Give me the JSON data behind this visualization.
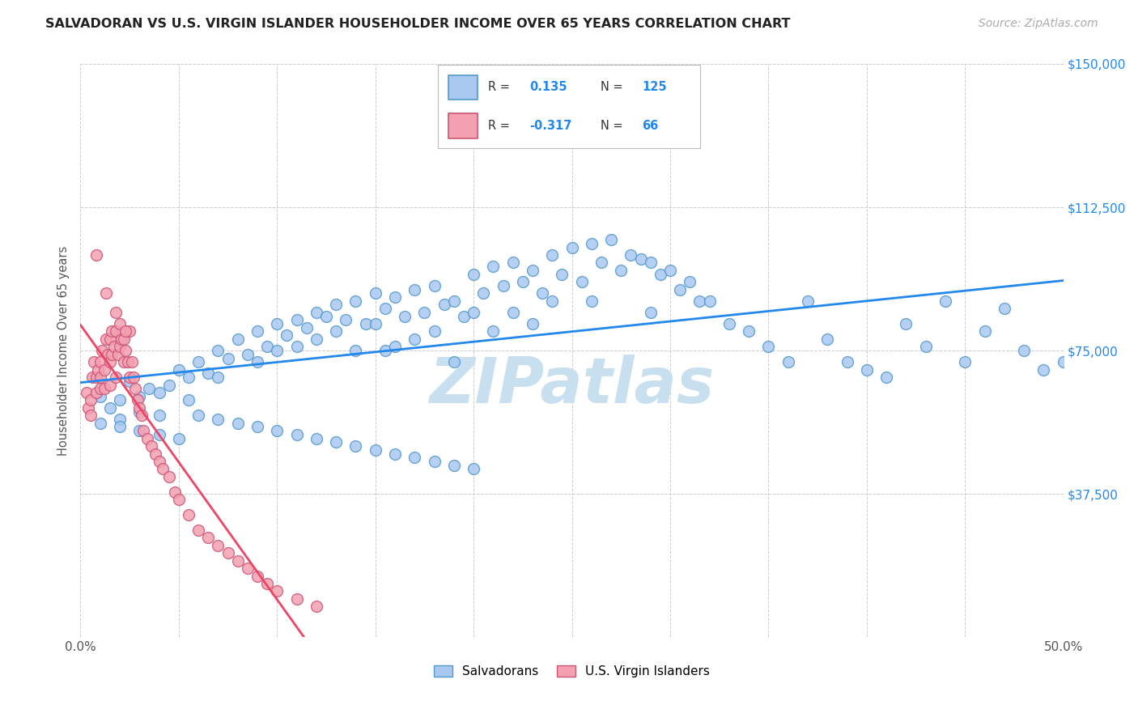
{
  "title": "SALVADORAN VS U.S. VIRGIN ISLANDER HOUSEHOLDER INCOME OVER 65 YEARS CORRELATION CHART",
  "source": "Source: ZipAtlas.com",
  "ylabel": "Householder Income Over 65 years",
  "xlim": [
    0.0,
    0.5
  ],
  "ylim": [
    0,
    150000
  ],
  "xticks": [
    0.0,
    0.05,
    0.1,
    0.15,
    0.2,
    0.25,
    0.3,
    0.35,
    0.4,
    0.45,
    0.5
  ],
  "xticklabels": [
    "0.0%",
    "",
    "",
    "",
    "",
    "",
    "",
    "",
    "",
    "",
    "50.0%"
  ],
  "yticks": [
    0,
    37500,
    75000,
    112500,
    150000
  ],
  "yticklabels": [
    "",
    "$37,500",
    "$75,000",
    "$112,500",
    "$150,000"
  ],
  "blue_R": 0.135,
  "blue_N": 125,
  "pink_R": -0.317,
  "pink_N": 66,
  "blue_color": "#a8c8f0",
  "pink_color": "#f4a0b0",
  "blue_line_color": "#2288ee",
  "pink_line_color": "#ee4466",
  "blue_edge_color": "#5599cc",
  "pink_edge_color": "#cc5577",
  "watermark": "ZIPatlas",
  "watermark_color": "#c8dff0",
  "legend_blue_label": "Salvadorans",
  "legend_pink_label": "U.S. Virgin Islanders",
  "background_color": "#ffffff",
  "grid_color": "#cccccc",
  "blue_scatter_x": [
    0.01,
    0.015,
    0.02,
    0.02,
    0.025,
    0.03,
    0.03,
    0.035,
    0.04,
    0.04,
    0.045,
    0.05,
    0.055,
    0.055,
    0.06,
    0.065,
    0.07,
    0.07,
    0.075,
    0.08,
    0.085,
    0.09,
    0.09,
    0.095,
    0.1,
    0.1,
    0.105,
    0.11,
    0.11,
    0.115,
    0.12,
    0.12,
    0.125,
    0.13,
    0.13,
    0.135,
    0.14,
    0.14,
    0.145,
    0.15,
    0.15,
    0.155,
    0.155,
    0.16,
    0.16,
    0.165,
    0.17,
    0.17,
    0.175,
    0.18,
    0.18,
    0.185,
    0.19,
    0.19,
    0.195,
    0.2,
    0.2,
    0.205,
    0.21,
    0.21,
    0.215,
    0.22,
    0.22,
    0.225,
    0.23,
    0.23,
    0.235,
    0.24,
    0.24,
    0.245,
    0.25,
    0.255,
    0.26,
    0.26,
    0.265,
    0.27,
    0.275,
    0.28,
    0.285,
    0.29,
    0.29,
    0.295,
    0.3,
    0.305,
    0.31,
    0.315,
    0.32,
    0.33,
    0.34,
    0.35,
    0.36,
    0.37,
    0.38,
    0.39,
    0.4,
    0.41,
    0.42,
    0.43,
    0.44,
    0.45,
    0.46,
    0.47,
    0.48,
    0.49,
    0.5,
    0.01,
    0.02,
    0.03,
    0.04,
    0.05,
    0.06,
    0.07,
    0.08,
    0.09,
    0.1,
    0.11,
    0.12,
    0.13,
    0.14,
    0.15,
    0.16,
    0.17,
    0.18,
    0.19,
    0.2
  ],
  "blue_scatter_y": [
    63000,
    60000,
    62000,
    57000,
    67000,
    63000,
    59000,
    65000,
    64000,
    58000,
    66000,
    70000,
    68000,
    62000,
    72000,
    69000,
    75000,
    68000,
    73000,
    78000,
    74000,
    80000,
    72000,
    76000,
    82000,
    75000,
    79000,
    83000,
    76000,
    81000,
    85000,
    78000,
    84000,
    87000,
    80000,
    83000,
    88000,
    75000,
    82000,
    90000,
    82000,
    86000,
    75000,
    89000,
    76000,
    84000,
    91000,
    78000,
    85000,
    92000,
    80000,
    87000,
    88000,
    72000,
    84000,
    95000,
    85000,
    90000,
    97000,
    80000,
    92000,
    98000,
    85000,
    93000,
    96000,
    82000,
    90000,
    100000,
    88000,
    95000,
    102000,
    93000,
    103000,
    88000,
    98000,
    104000,
    96000,
    100000,
    99000,
    98000,
    85000,
    95000,
    96000,
    91000,
    93000,
    88000,
    88000,
    82000,
    80000,
    76000,
    72000,
    88000,
    78000,
    72000,
    70000,
    68000,
    82000,
    76000,
    88000,
    72000,
    80000,
    86000,
    75000,
    70000,
    72000,
    56000,
    55000,
    54000,
    53000,
    52000,
    58000,
    57000,
    56000,
    55000,
    54000,
    53000,
    52000,
    51000,
    50000,
    49000,
    48000,
    47000,
    46000,
    45000,
    44000
  ],
  "pink_scatter_x": [
    0.003,
    0.004,
    0.005,
    0.005,
    0.006,
    0.007,
    0.008,
    0.008,
    0.009,
    0.01,
    0.01,
    0.01,
    0.011,
    0.012,
    0.012,
    0.013,
    0.014,
    0.015,
    0.015,
    0.015,
    0.016,
    0.016,
    0.017,
    0.018,
    0.018,
    0.019,
    0.02,
    0.02,
    0.021,
    0.022,
    0.022,
    0.023,
    0.024,
    0.025,
    0.025,
    0.026,
    0.027,
    0.028,
    0.029,
    0.03,
    0.031,
    0.032,
    0.034,
    0.036,
    0.038,
    0.04,
    0.042,
    0.045,
    0.048,
    0.05,
    0.055,
    0.06,
    0.065,
    0.07,
    0.075,
    0.08,
    0.085,
    0.09,
    0.095,
    0.1,
    0.11,
    0.12,
    0.013,
    0.018,
    0.023,
    0.008
  ],
  "pink_scatter_y": [
    64000,
    60000,
    62000,
    58000,
    68000,
    72000,
    68000,
    64000,
    70000,
    72000,
    68000,
    65000,
    75000,
    70000,
    65000,
    78000,
    74000,
    78000,
    72000,
    66000,
    80000,
    74000,
    76000,
    80000,
    68000,
    74000,
    82000,
    76000,
    78000,
    78000,
    72000,
    75000,
    72000,
    80000,
    68000,
    72000,
    68000,
    65000,
    62000,
    60000,
    58000,
    54000,
    52000,
    50000,
    48000,
    46000,
    44000,
    42000,
    38000,
    36000,
    32000,
    28000,
    26000,
    24000,
    22000,
    20000,
    18000,
    16000,
    14000,
    12000,
    10000,
    8000,
    90000,
    85000,
    80000,
    100000
  ]
}
